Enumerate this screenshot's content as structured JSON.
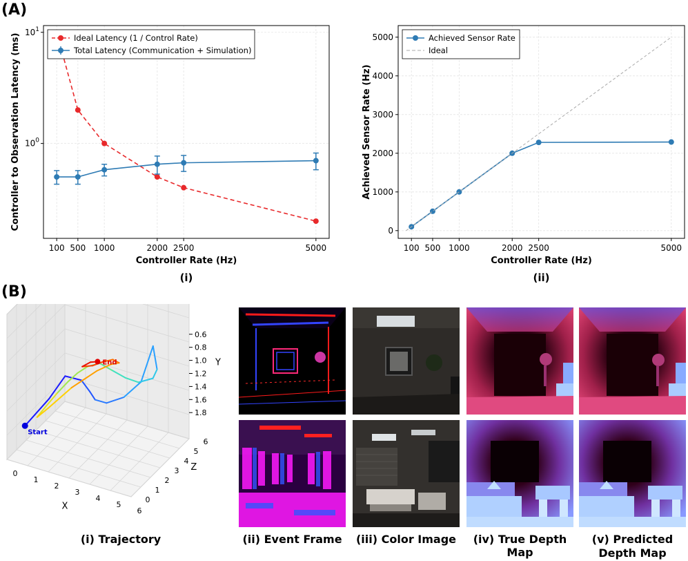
{
  "panel_a_label": "(A)",
  "panel_b_label": "(B)",
  "chart_data": [
    {
      "type": "line",
      "id": "latency",
      "caption": "(i)",
      "xlabel": "Controller Rate (Hz)",
      "ylabel": "Controller to Observation Latency (ms)",
      "yscale": "log",
      "xlim": [
        -150,
        5250
      ],
      "ylim": [
        0.14,
        11.5
      ],
      "x_ticks": [
        100,
        500,
        1000,
        2000,
        2500,
        5000
      ],
      "y_ticks": [
        {
          "value": 1,
          "label": "10",
          "sup": "0"
        },
        {
          "value": 10,
          "label": "10",
          "sup": "1"
        }
      ],
      "grid": true,
      "legend_position": "top-left",
      "series": [
        {
          "name": "Ideal Latency (1 / Control Rate)",
          "color": "#e8292b",
          "style": "dashed",
          "x": [
            100,
            500,
            1000,
            2000,
            2500,
            5000
          ],
          "y": [
            10,
            2,
            1,
            0.5,
            0.4,
            0.2
          ]
        },
        {
          "name": "Total Latency (Communication + Simulation)",
          "color": "#2e7bb4",
          "style": "solid",
          "x": [
            100,
            500,
            1000,
            2000,
            2500,
            5000
          ],
          "y": [
            0.5,
            0.5,
            0.58,
            0.65,
            0.67,
            0.7
          ],
          "err": [
            0.07,
            0.07,
            0.07,
            0.12,
            0.11,
            0.12
          ]
        }
      ]
    },
    {
      "type": "line",
      "id": "sensor_rate",
      "caption": "(ii)",
      "xlabel": "Controller Rate (Hz)",
      "ylabel": "Achieved Sensor Rate (Hz)",
      "xlim": [
        -150,
        5250
      ],
      "ylim": [
        -200,
        5300
      ],
      "x_ticks": [
        100,
        500,
        1000,
        2000,
        2500,
        5000
      ],
      "y_ticks": [
        0,
        1000,
        2000,
        3000,
        4000,
        5000
      ],
      "grid": true,
      "legend_position": "top-left",
      "series": [
        {
          "name": "Achieved Sensor Rate",
          "color": "#2e7bb4",
          "style": "solid",
          "x": [
            100,
            500,
            1000,
            2000,
            2500,
            5000
          ],
          "y": [
            100,
            500,
            1000,
            2000,
            2280,
            2290
          ]
        },
        {
          "name": "Ideal",
          "color": "#aaaaaa",
          "style": "dashed",
          "x": [
            0,
            5000
          ],
          "y": [
            0,
            5000
          ]
        }
      ]
    },
    {
      "type": "line",
      "id": "trajectory",
      "caption": "(i) Trajectory",
      "axes": {
        "x": "X",
        "y": "Y",
        "z": "Z"
      },
      "x_ticks": [
        "0",
        "1",
        "2",
        "3",
        "4",
        "5",
        "6"
      ],
      "z_ticks": [
        "0",
        "1",
        "2",
        "3",
        "4",
        "5",
        "6"
      ],
      "y_ticks": [
        "0.6",
        "0.8",
        "1.0",
        "1.2",
        "1.4",
        "1.6",
        "1.8"
      ],
      "annotations": [
        "Start",
        "End"
      ]
    }
  ],
  "image_captions": {
    "event": "(ii) Event Frame",
    "color": "(iii) Color Image",
    "true_depth": "(iv) True Depth Map",
    "pred_depth_line1": "(v) Predicted",
    "pred_depth_line2": "Depth Map"
  }
}
